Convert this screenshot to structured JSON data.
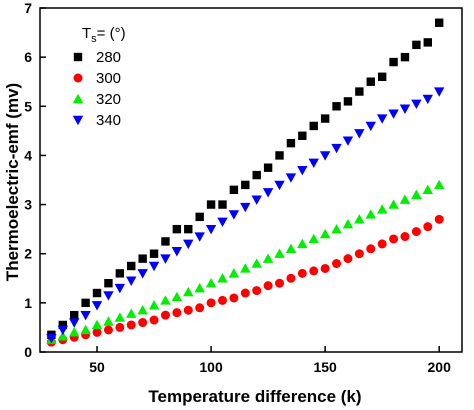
{
  "chart_data": {
    "type": "scatter",
    "title": "",
    "xlabel": "Temperature difference (k)",
    "ylabel": "Thermoelectric-emf (mv)",
    "xlim": [
      25,
      210
    ],
    "ylim": [
      0,
      7
    ],
    "xticks": [
      50,
      100,
      150,
      200
    ],
    "yticks": [
      0,
      1,
      2,
      3,
      4,
      5,
      6,
      7
    ],
    "legend": {
      "title_main": "T",
      "title_sub": "s",
      "title_rest": "= (°)",
      "placement": "top-left"
    },
    "x": [
      30,
      35,
      40,
      45,
      50,
      55,
      60,
      65,
      70,
      75,
      80,
      85,
      90,
      95,
      100,
      105,
      110,
      115,
      120,
      125,
      130,
      135,
      140,
      145,
      150,
      155,
      160,
      165,
      170,
      175,
      180,
      185,
      190,
      195,
      200
    ],
    "series": [
      {
        "name": "280",
        "color": "#000000",
        "marker": "square",
        "values": [
          0.35,
          0.55,
          0.75,
          1.0,
          1.2,
          1.4,
          1.6,
          1.75,
          1.9,
          2.0,
          2.25,
          2.5,
          2.5,
          2.75,
          3.0,
          3.0,
          3.3,
          3.4,
          3.6,
          3.75,
          4.0,
          4.25,
          4.4,
          4.6,
          4.75,
          5.0,
          5.1,
          5.3,
          5.5,
          5.6,
          5.9,
          6.0,
          6.25,
          6.3,
          6.7
        ]
      },
      {
        "name": "300",
        "color": "#ff0000",
        "marker": "circle",
        "values": [
          0.2,
          0.25,
          0.3,
          0.35,
          0.4,
          0.45,
          0.5,
          0.55,
          0.6,
          0.65,
          0.75,
          0.8,
          0.85,
          0.9,
          1.0,
          1.05,
          1.1,
          1.2,
          1.25,
          1.35,
          1.4,
          1.5,
          1.6,
          1.65,
          1.7,
          1.8,
          1.9,
          2.0,
          2.1,
          2.2,
          2.3,
          2.35,
          2.45,
          2.55,
          2.7
        ]
      },
      {
        "name": "320",
        "color": "#00ee00",
        "marker": "triangle-up",
        "values": [
          0.25,
          0.32,
          0.4,
          0.45,
          0.55,
          0.62,
          0.7,
          0.78,
          0.85,
          0.95,
          1.05,
          1.12,
          1.22,
          1.3,
          1.4,
          1.5,
          1.6,
          1.7,
          1.8,
          1.9,
          2.0,
          2.1,
          2.2,
          2.3,
          2.4,
          2.5,
          2.6,
          2.7,
          2.8,
          2.9,
          3.0,
          3.1,
          3.2,
          3.3,
          3.4
        ]
      },
      {
        "name": "340",
        "color": "#0000ff",
        "marker": "triangle-down",
        "values": [
          0.28,
          0.45,
          0.6,
          0.75,
          0.95,
          1.15,
          1.3,
          1.45,
          1.6,
          1.75,
          1.9,
          2.05,
          2.2,
          2.35,
          2.5,
          2.65,
          2.8,
          2.95,
          3.1,
          3.25,
          3.4,
          3.55,
          3.7,
          3.85,
          4.0,
          4.15,
          4.3,
          4.45,
          4.6,
          4.75,
          4.85,
          4.95,
          5.05,
          5.15,
          5.3
        ]
      }
    ]
  }
}
